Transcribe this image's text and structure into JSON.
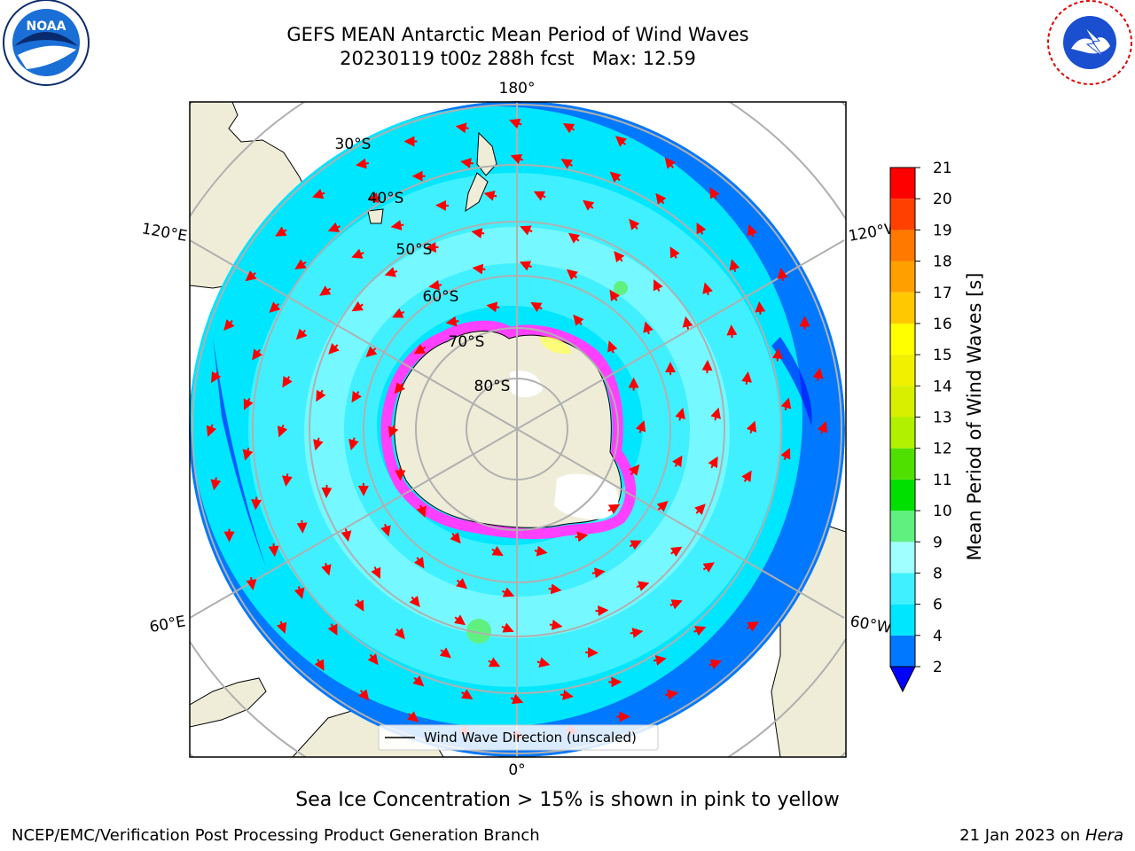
{
  "title": {
    "line1": "GEFS MEAN Antarctic Mean Period of Wind Waves",
    "line2": "20230119 t00z 288h fcst   Max: 12.59"
  },
  "caption": "Sea Ice Concentration > 15% is shown in pink to yellow",
  "footer": {
    "left": "NCEP/EMC/Verification Post Processing Product Generation Branch",
    "date": "21 Jan 2023 on",
    "machine": "Hera"
  },
  "map": {
    "projection": "south-polar-stereographic",
    "longitude_labels": [
      "180°",
      "0°",
      "120°E",
      "120°W",
      "60°E",
      "60°W"
    ],
    "latitude_labels": [
      "30°S",
      "40°S",
      "50°S",
      "60°S",
      "70°S",
      "80°S"
    ],
    "legend_label": "Wind Wave Direction (unscaled)",
    "colors": {
      "land": "#efedd8",
      "sea_ice": "#ff40ff",
      "arrows": "#ff0000",
      "grid": "#b0b0b0"
    }
  },
  "colorbar": {
    "label": "Mean Period of Wind Waves [s]",
    "ticks": [
      "2",
      "4",
      "6",
      "8",
      "9",
      "10",
      "11",
      "12",
      "13",
      "14",
      "15",
      "16",
      "17",
      "18",
      "19",
      "20",
      "21"
    ],
    "bands": [
      {
        "from": 2,
        "to": 4,
        "color": "#0078ff"
      },
      {
        "from": 4,
        "to": 6,
        "color": "#00e6ff"
      },
      {
        "from": 6,
        "to": 8,
        "color": "#40f0ff"
      },
      {
        "from": 8,
        "to": 9,
        "color": "#a0ffff"
      },
      {
        "from": 9,
        "to": 10,
        "color": "#60f080"
      },
      {
        "from": 10,
        "to": 11,
        "color": "#00e000"
      },
      {
        "from": 11,
        "to": 12,
        "color": "#50e000"
      },
      {
        "from": 12,
        "to": 13,
        "color": "#b0f000"
      },
      {
        "from": 13,
        "to": 14,
        "color": "#d8f000"
      },
      {
        "from": 14,
        "to": 15,
        "color": "#f0f000"
      },
      {
        "from": 15,
        "to": 16,
        "color": "#ffff00"
      },
      {
        "from": 16,
        "to": 17,
        "color": "#ffc800"
      },
      {
        "from": 17,
        "to": 18,
        "color": "#ffa000"
      },
      {
        "from": 18,
        "to": 19,
        "color": "#ff7800"
      },
      {
        "from": 19,
        "to": 20,
        "color": "#ff4000"
      },
      {
        "from": 20,
        "to": 21,
        "color": "#ff0000"
      }
    ],
    "under_color": "#0000ff"
  },
  "logos": {
    "left": {
      "icon": "noaa-logo",
      "text": "NOAA"
    },
    "right": {
      "icon": "nws-logo",
      "text": "NATIONAL WEATHER SERVICE"
    }
  }
}
